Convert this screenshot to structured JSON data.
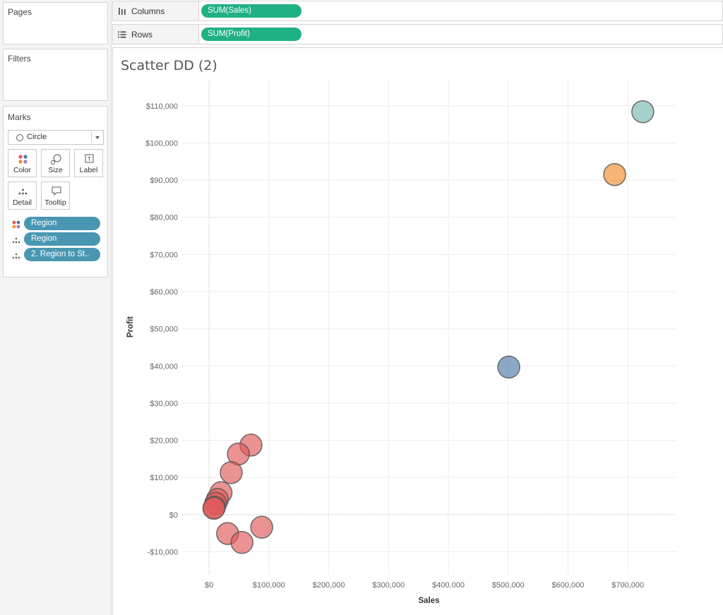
{
  "left_pane": {
    "pages_title": "Pages",
    "filters_title": "Filters",
    "marks_title": "Marks",
    "mark_type": "Circle",
    "buttons": [
      {
        "label": "Color"
      },
      {
        "label": "Size"
      },
      {
        "label": "Label"
      },
      {
        "label": "Detail"
      },
      {
        "label": "Tooltip"
      }
    ],
    "fields": [
      {
        "icon": "color-dots-icon",
        "label": "Region"
      },
      {
        "icon": "detail-dots-icon",
        "label": "Region"
      },
      {
        "icon": "detail-dots-icon",
        "label": "2. Region to St.."
      }
    ]
  },
  "shelves": {
    "columns_label": "Columns",
    "columns_pill": "SUM(Sales)",
    "rows_label": "Rows",
    "rows_pill": "SUM(Profit)",
    "pill_color": "#1fb084",
    "field_pill_color": "#4996b2"
  },
  "view": {
    "title": "Scatter DD (2)"
  },
  "chart_data": {
    "type": "scatter",
    "title": "Scatter DD (2)",
    "xlabel": "Sales",
    "ylabel": "Profit",
    "xlim": [
      -45000,
      780000
    ],
    "ylim": [
      -16000,
      117000
    ],
    "xticks": [
      0,
      100000,
      200000,
      300000,
      400000,
      500000,
      600000,
      700000
    ],
    "xtick_labels": [
      "$0",
      "$100,000",
      "$200,000",
      "$300,000",
      "$400,000",
      "$500,000",
      "$600,000",
      "$700,000"
    ],
    "yticks": [
      -10000,
      0,
      10000,
      20000,
      30000,
      40000,
      50000,
      60000,
      70000,
      80000,
      90000,
      100000,
      110000
    ],
    "ytick_labels": [
      "-$10,000",
      "$0",
      "$10,000",
      "$20,000",
      "$30,000",
      "$40,000",
      "$50,000",
      "$60,000",
      "$70,000",
      "$80,000",
      "$90,000",
      "$100,000",
      "$110,000"
    ],
    "grid": true,
    "series": [
      {
        "color": "#76b7b2",
        "points": [
          {
            "x": 725000,
            "y": 108400
          }
        ]
      },
      {
        "color": "#f28e2b",
        "points": [
          {
            "x": 678000,
            "y": 91500
          }
        ]
      },
      {
        "color": "#4e79a7",
        "points": [
          {
            "x": 501000,
            "y": 39700
          }
        ]
      },
      {
        "color": "#e15759",
        "points": [
          {
            "x": 70000,
            "y": 18700
          },
          {
            "x": 49000,
            "y": 16300
          },
          {
            "x": 37000,
            "y": 11300
          },
          {
            "x": 20000,
            "y": 5900
          },
          {
            "x": 14000,
            "y": 4100
          },
          {
            "x": 11000,
            "y": 3000
          },
          {
            "x": 9000,
            "y": 2000
          },
          {
            "x": 8000,
            "y": 1700
          },
          {
            "x": 88000,
            "y": -3400
          },
          {
            "x": 31000,
            "y": -5100
          },
          {
            "x": 55000,
            "y": -7500
          }
        ]
      }
    ]
  }
}
